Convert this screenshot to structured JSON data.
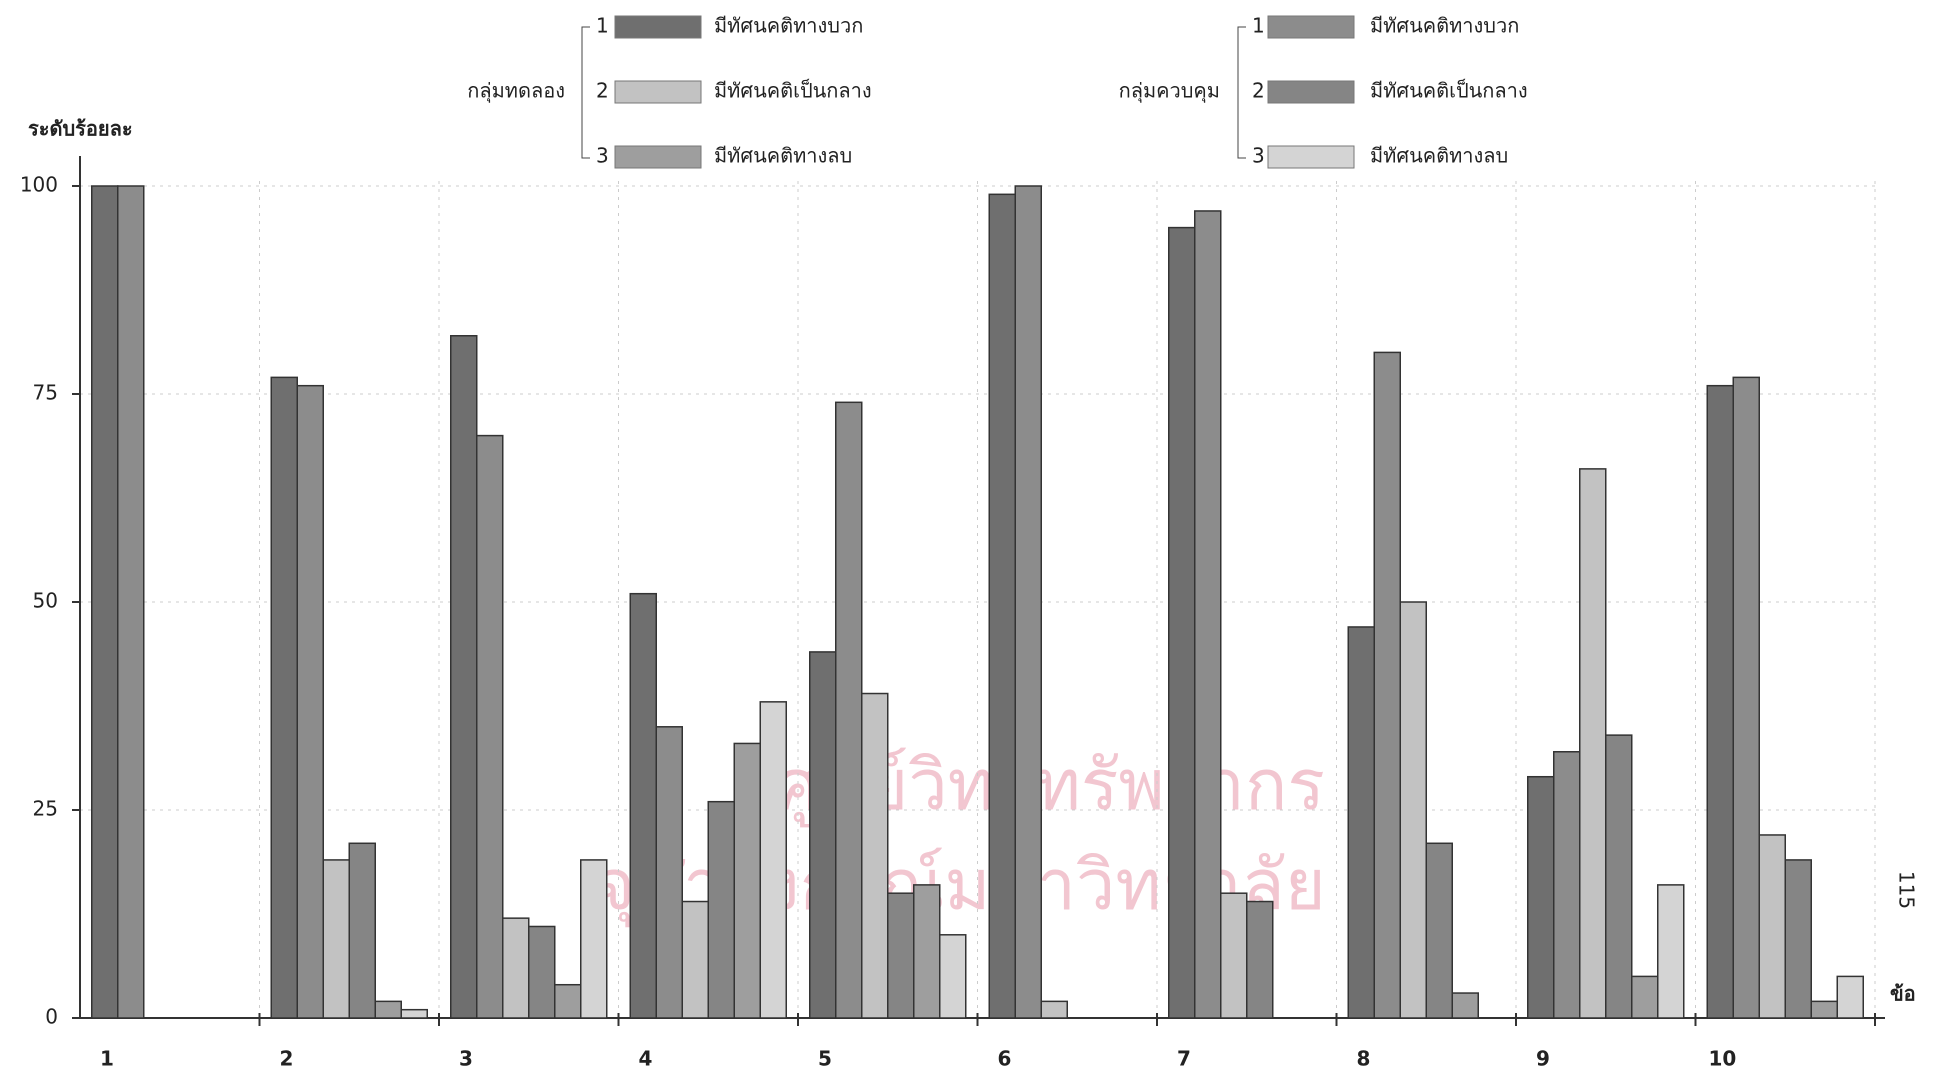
{
  "chart_data": {
    "type": "bar",
    "y_label": "ระดับร้อยละ",
    "x_label": "ข้อ",
    "page_number": "115",
    "watermark": [
      "ศูนย์วิทยทรัพยากร",
      "จุฬาลงกรณ์มหาวิทยาลัย"
    ],
    "legend_groups": [
      "กลุ่มทดลอง",
      "กลุ่มควบคุม"
    ],
    "categories": [
      "1",
      "2",
      "3",
      "4",
      "5",
      "6",
      "7",
      "8",
      "9",
      "10"
    ],
    "series": [
      {
        "name": "มีทัศนคติทางบวก",
        "legend_key": 1,
        "group": 0,
        "color": "#6f6f6f",
        "values": [
          100,
          77,
          82,
          51,
          44,
          99,
          95,
          47,
          29,
          76
        ]
      },
      {
        "name": "มีทัศนคติทางบวก",
        "legend_key": 1,
        "group": 1,
        "color": "#8c8c8c",
        "values": [
          100,
          76,
          70,
          35,
          74,
          100,
          97,
          80,
          32,
          77
        ]
      },
      {
        "name": "มีทัศนคติเป็นกลาง",
        "legend_key": 2,
        "group": 0,
        "color": "#c2c2c2",
        "values": [
          0,
          19,
          12,
          14,
          39,
          2,
          15,
          50,
          66,
          22
        ]
      },
      {
        "name": "มีทัศนคติเป็นกลาง",
        "legend_key": 2,
        "group": 1,
        "color": "#858585",
        "values": [
          0,
          21,
          11,
          26,
          15,
          0,
          14,
          21,
          34,
          19
        ]
      },
      {
        "name": "มีทัศนคติทางลบ",
        "legend_key": 3,
        "group": 0,
        "color": "#9e9e9e",
        "values": [
          0,
          2,
          4,
          33,
          16,
          0,
          0,
          3,
          5,
          2
        ]
      },
      {
        "name": "มีทัศนคติทางลบ",
        "legend_key": 3,
        "group": 1,
        "color": "#d4d4d4",
        "values": [
          0,
          1,
          19,
          38,
          10,
          0,
          0,
          0,
          16,
          5
        ]
      }
    ],
    "ylim": [
      0,
      100
    ],
    "yticks": [
      0,
      25,
      50,
      75,
      100
    ],
    "grid": true
  }
}
